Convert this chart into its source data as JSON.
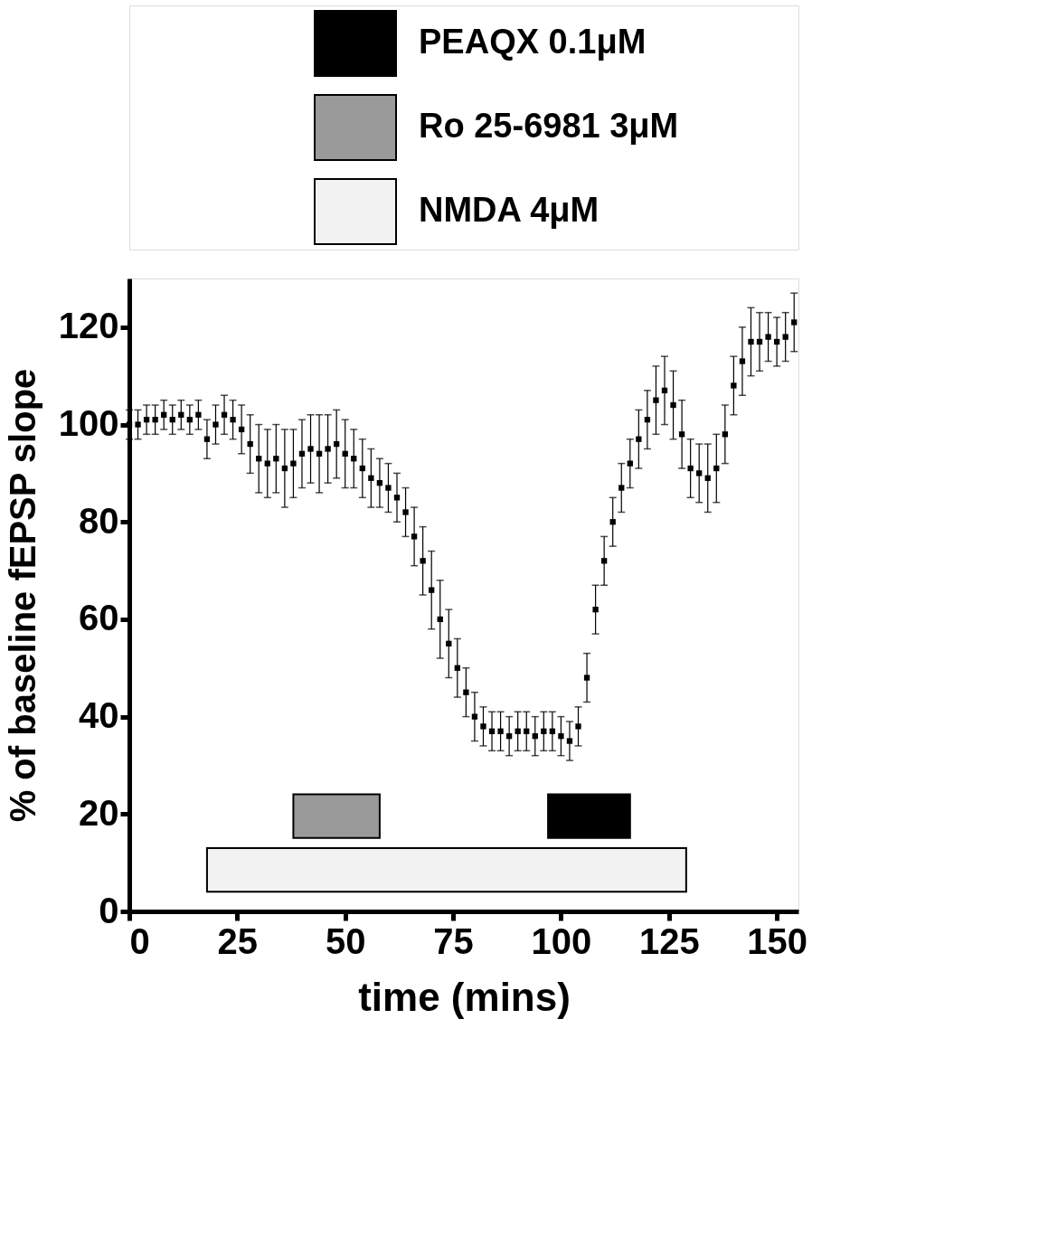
{
  "chart_data": {
    "type": "scatter",
    "xlabel": "time (mins)",
    "ylabel": "% of baseline fEPSP slope",
    "x": [
      0,
      2,
      4,
      6,
      8,
      10,
      12,
      14,
      16,
      18,
      20,
      22,
      24,
      26,
      28,
      30,
      32,
      34,
      36,
      38,
      40,
      42,
      44,
      46,
      48,
      50,
      52,
      54,
      56,
      58,
      60,
      62,
      64,
      66,
      68,
      70,
      72,
      74,
      76,
      78,
      80,
      82,
      84,
      86,
      88,
      90,
      92,
      94,
      96,
      98,
      100,
      102,
      104,
      106,
      108,
      110,
      112,
      114,
      116,
      118,
      120,
      122,
      124,
      126,
      128,
      130,
      132,
      134,
      136,
      138,
      140,
      142,
      144,
      146,
      148,
      150,
      152,
      154
    ],
    "series": [
      {
        "color": "#000000",
        "values": [
          100,
          100,
          101,
          101,
          102,
          101,
          102,
          101,
          102,
          97,
          100,
          102,
          101,
          99,
          96,
          93,
          92,
          93,
          91,
          92,
          94,
          95,
          94,
          95,
          96,
          94,
          93,
          91,
          89,
          88,
          87,
          85,
          82,
          77,
          72,
          66,
          60,
          55,
          50,
          45,
          40,
          38,
          37,
          37,
          36,
          37,
          37,
          36,
          37,
          37,
          36,
          35,
          38,
          48,
          62,
          72,
          80,
          87,
          92,
          97,
          101,
          105,
          107,
          104,
          98,
          91,
          90,
          89,
          91,
          98,
          108,
          113,
          117,
          117,
          118,
          117,
          118,
          121
        ],
        "errors": [
          3,
          3,
          3,
          3,
          3,
          3,
          3,
          3,
          3,
          4,
          4,
          4,
          4,
          5,
          6,
          7,
          7,
          7,
          8,
          7,
          7,
          7,
          8,
          7,
          7,
          7,
          6,
          6,
          6,
          5,
          5,
          5,
          5,
          6,
          7,
          8,
          8,
          7,
          6,
          5,
          5,
          4,
          4,
          4,
          4,
          4,
          4,
          4,
          4,
          4,
          4,
          4,
          4,
          5,
          5,
          5,
          5,
          5,
          5,
          6,
          6,
          7,
          7,
          7,
          7,
          6,
          6,
          7,
          7,
          6,
          6,
          7,
          7,
          6,
          5,
          5,
          5,
          6
        ]
      }
    ],
    "marker": "square",
    "xlim": [
      0,
      155
    ],
    "xticks": [
      0,
      25,
      50,
      75,
      100,
      125,
      150
    ],
    "ylim": [
      0,
      130
    ],
    "yticks": [
      0,
      20,
      40,
      60,
      80,
      100,
      120
    ],
    "grid": false,
    "legend": "top",
    "bands": [
      {
        "axis": "x",
        "from": 97,
        "to": 116,
        "label": "PEAQX 0.1μM",
        "color": "#000000"
      },
      {
        "axis": "x",
        "from": 38,
        "to": 58,
        "label": "Ro 25-6981 3μM",
        "color": "#9a9a9a"
      },
      {
        "axis": "x",
        "from": 18,
        "to": 129,
        "label": "NMDA 4μM",
        "color": "#f2f2f2"
      }
    ]
  }
}
